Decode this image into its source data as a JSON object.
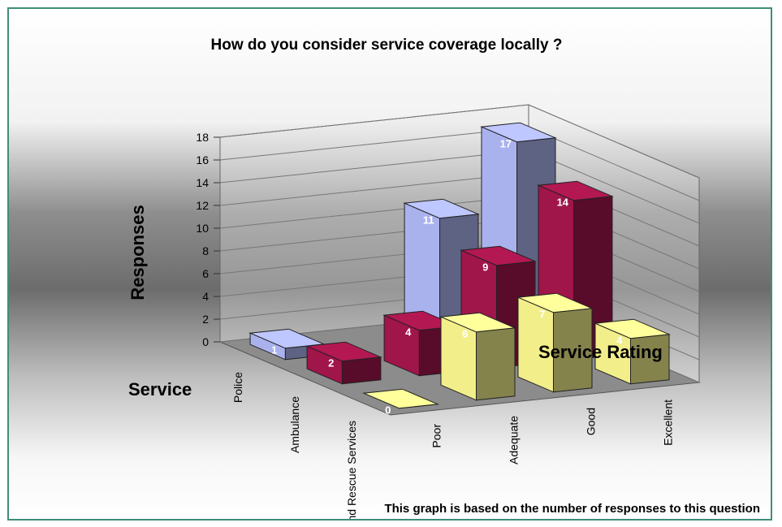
{
  "chart_data": {
    "type": "bar",
    "subtype": "3d-bar",
    "title": "How do you consider service coverage locally ?",
    "ylabel": "Responses",
    "xlabel": "Service",
    "zlabel": "Service Rating",
    "ylim": [
      0,
      18
    ],
    "yticks": [
      0,
      2,
      4,
      6,
      8,
      10,
      12,
      14,
      16,
      18
    ],
    "categories": [
      "Police",
      "Ambulance",
      "Fire and Rescue Services"
    ],
    "series": [
      {
        "name": "Poor",
        "values": [
          1,
          2,
          0
        ],
        "color": "#f2ee8a"
      },
      {
        "name": "Adequate",
        "values": [
          null,
          4,
          6
        ],
        "color": "#f2ee8a"
      },
      {
        "name": "Good",
        "values": [
          11,
          9,
          7
        ],
        "color": "#f2ee8a"
      },
      {
        "name": "Excellent",
        "values": [
          17,
          14,
          4
        ],
        "color": "#f2ee8a"
      }
    ],
    "grid": true,
    "footnote": "This graph is based on the number of responses to this question"
  },
  "colors": {
    "police": "#aab2ee",
    "ambulance": "#a0154a",
    "fire": "#f2ee8a",
    "frame_border": "#3f8e7a"
  }
}
